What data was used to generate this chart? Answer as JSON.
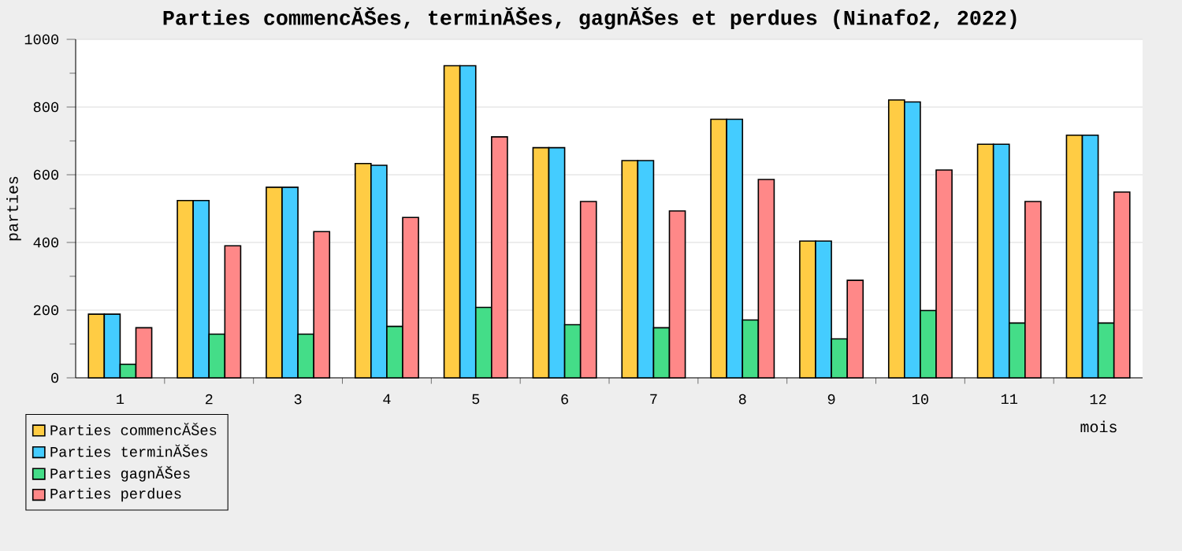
{
  "chart_data": {
    "type": "bar",
    "title": "Parties commencĂŠes, terminĂŠes, gagnĂŠes et perdues (Ninafo2, 2022)",
    "xlabel": "mois",
    "ylabel": "parties",
    "categories": [
      "1",
      "2",
      "3",
      "4",
      "5",
      "6",
      "7",
      "8",
      "9",
      "10",
      "11",
      "12"
    ],
    "series": [
      {
        "name": "Parties commencĂŠes",
        "color": "#ffcc44",
        "values": [
          188,
          524,
          563,
          633,
          922,
          680,
          642,
          764,
          404,
          821,
          690,
          717
        ]
      },
      {
        "name": "Parties terminĂŠes",
        "color": "#44ccff",
        "values": [
          188,
          524,
          563,
          628,
          922,
          680,
          642,
          764,
          404,
          815,
          690,
          717
        ]
      },
      {
        "name": "Parties gagnĂŠes",
        "color": "#44dd88",
        "values": [
          40,
          129,
          129,
          152,
          208,
          157,
          148,
          171,
          115,
          199,
          162,
          162
        ]
      },
      {
        "name": "Parties perdues",
        "color": "#ff8888",
        "values": [
          148,
          390,
          432,
          474,
          712,
          521,
          493,
          586,
          288,
          614,
          521,
          549
        ]
      }
    ],
    "ylim": [
      0,
      1000
    ],
    "yticks": [
      0,
      200,
      400,
      600,
      800,
      1000
    ],
    "grid": "y",
    "legend": "bottom left"
  }
}
